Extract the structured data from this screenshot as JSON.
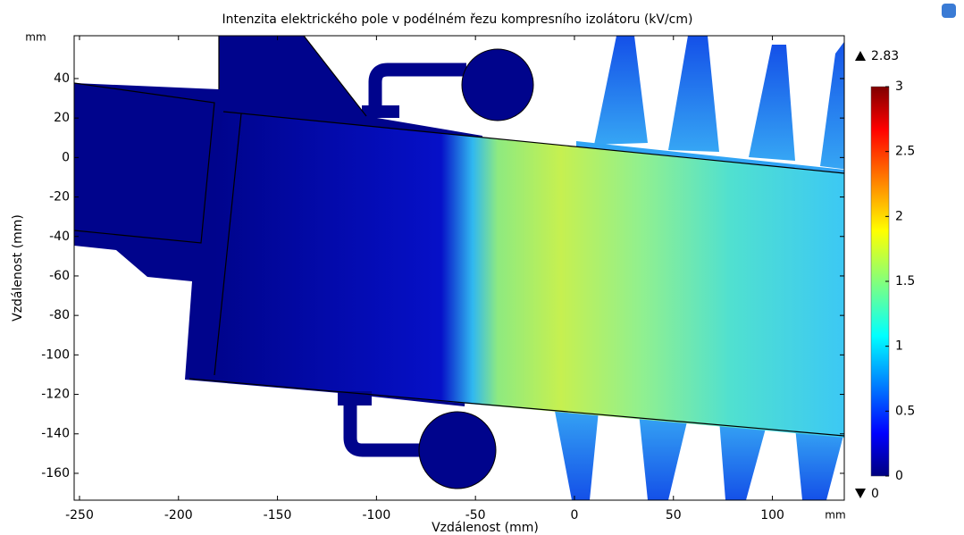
{
  "chart_data": {
    "type": "field",
    "title": "Intenzita elektrického pole v podélném řezu kompresního izolátoru (kV/cm)",
    "xlabel": "Vzdálenost (mm)",
    "ylabel": "Vzdálenost (mm)",
    "x_unit": "mm",
    "y_unit": "mm",
    "xlim": [
      -252.7,
      136.3
    ],
    "ylim": [
      -173.6,
      61.7
    ],
    "xticks": [
      -250,
      -200,
      -150,
      -100,
      -50,
      0,
      50,
      100
    ],
    "yticks": [
      -160,
      -140,
      -120,
      -100,
      -80,
      -60,
      -40,
      -20,
      0,
      20,
      40
    ],
    "colorbar": {
      "lim": [
        0,
        3
      ],
      "ticks": [
        0,
        0.5,
        1,
        1.5,
        2,
        2.5,
        3
      ],
      "max": 2.83,
      "min": 0
    }
  }
}
